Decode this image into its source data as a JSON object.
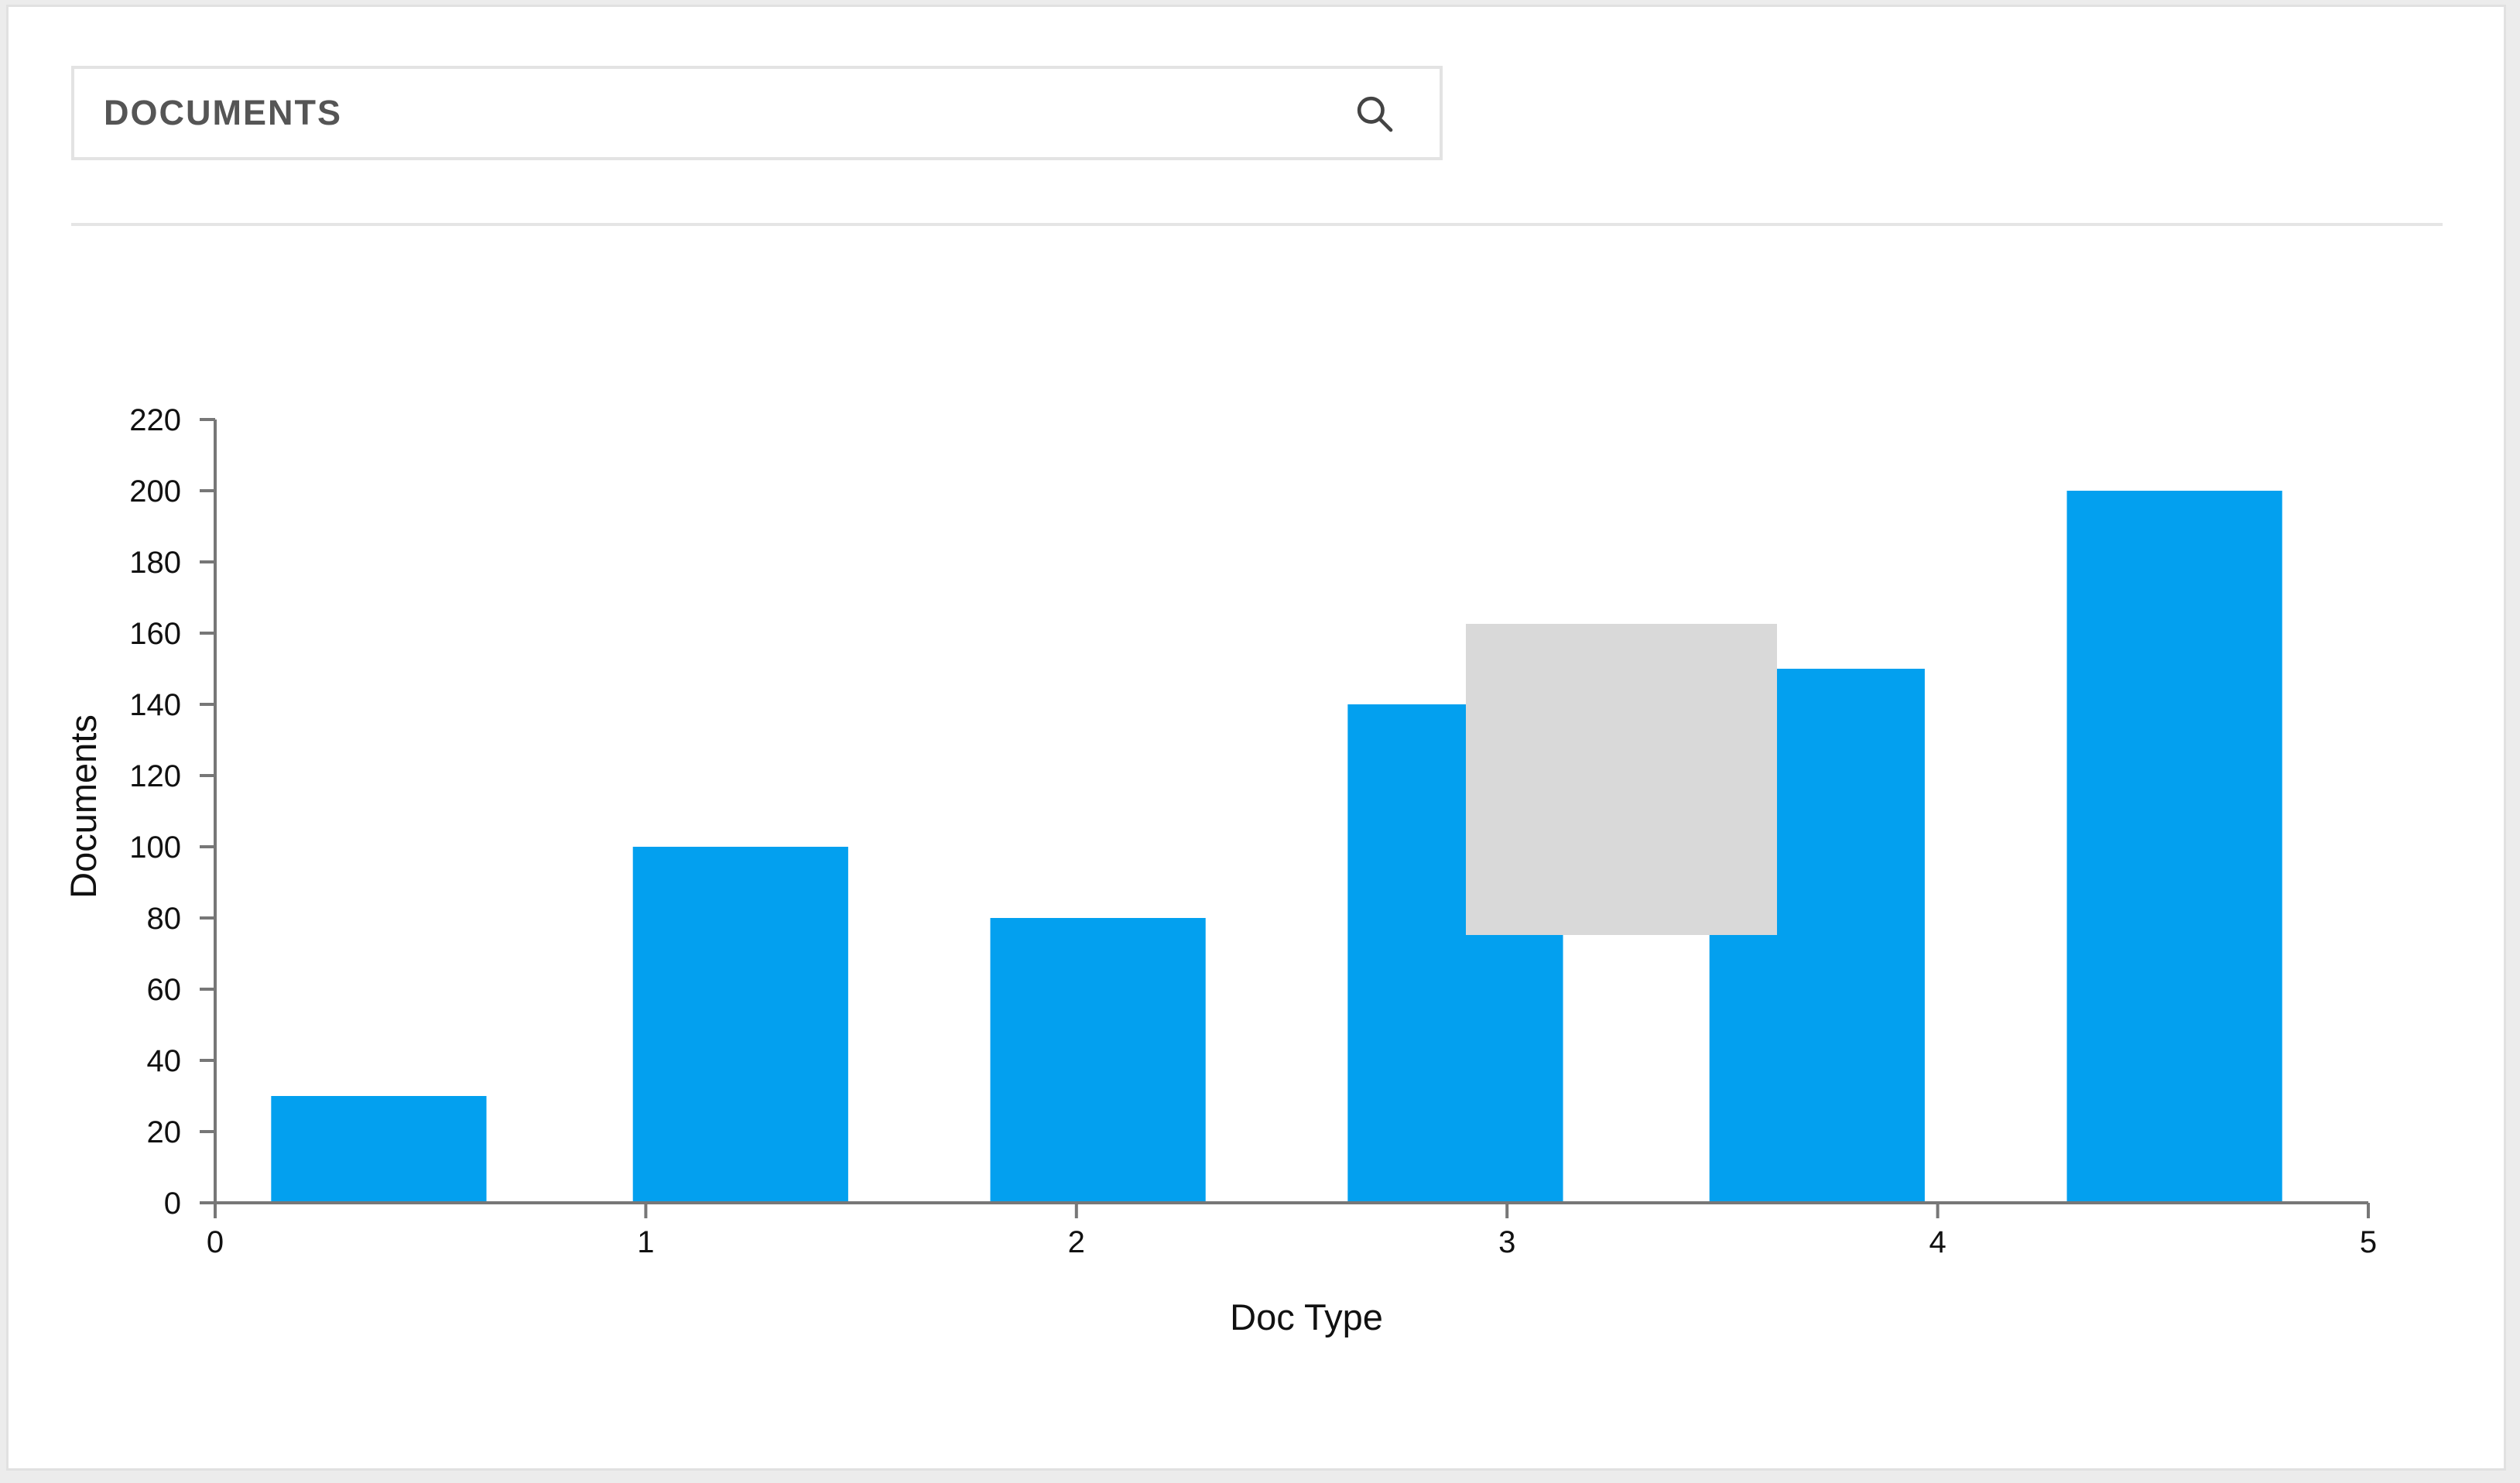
{
  "search": {
    "label": "DOCUMENTS",
    "icon": "search-icon"
  },
  "colors": {
    "bar": "#03a0ef",
    "axis": "#777777",
    "overlay": "#d9d9d9"
  },
  "chart_data": {
    "type": "bar",
    "title": "",
    "xlabel": "Doc Type",
    "ylabel": "Documents",
    "x_ticks": [
      0,
      1,
      2,
      3,
      4,
      5
    ],
    "y_ticks": [
      0,
      20,
      40,
      60,
      80,
      100,
      120,
      140,
      160,
      180,
      200,
      220
    ],
    "xlim": [
      0,
      5
    ],
    "ylim": [
      0,
      220
    ],
    "grid": false,
    "bars": [
      {
        "x_start": 0.13,
        "x_end": 0.63,
        "value": 30
      },
      {
        "x_start": 0.97,
        "x_end": 1.47,
        "value": 100
      },
      {
        "x_start": 1.8,
        "x_end": 2.3,
        "value": 80
      },
      {
        "x_start": 2.63,
        "x_end": 3.13,
        "value": 140
      },
      {
        "x_start": 3.47,
        "x_end": 3.97,
        "value": 150
      },
      {
        "x_start": 4.3,
        "x_end": 4.8,
        "value": 200
      }
    ]
  }
}
